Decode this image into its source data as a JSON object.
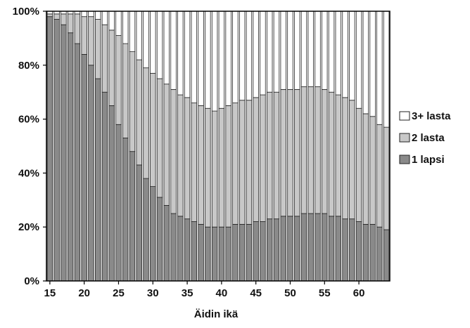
{
  "chart_data": {
    "type": "bar",
    "stacked": true,
    "normalized_percent": true,
    "xlabel": "Äidin ikä",
    "ylabel": "",
    "ylim": [
      0,
      100
    ],
    "ytick_labels": [
      "0%",
      "20%",
      "40%",
      "60%",
      "80%",
      "100%"
    ],
    "xtick_labels": [
      "15",
      "20",
      "25",
      "30",
      "35",
      "40",
      "45",
      "50",
      "55",
      "60"
    ],
    "categories": [
      15,
      16,
      17,
      18,
      19,
      20,
      21,
      22,
      23,
      24,
      25,
      26,
      27,
      28,
      29,
      30,
      31,
      32,
      33,
      34,
      35,
      36,
      37,
      38,
      39,
      40,
      41,
      42,
      43,
      44,
      45,
      46,
      47,
      48,
      49,
      50,
      51,
      52,
      53,
      54,
      55,
      56,
      57,
      58,
      59,
      60,
      61,
      62,
      63,
      64
    ],
    "legend_position": "right",
    "series": [
      {
        "name": "1 lapsi",
        "color": "#8a8a8a",
        "values": [
          98,
          97,
          95,
          92,
          88,
          84,
          80,
          75,
          70,
          65,
          58,
          53,
          48,
          43,
          38,
          35,
          31,
          28,
          25,
          24,
          23,
          22,
          21,
          20,
          20,
          20,
          20,
          21,
          21,
          21,
          22,
          22,
          23,
          23,
          24,
          24,
          24,
          25,
          25,
          25,
          25,
          24,
          24,
          23,
          23,
          22,
          21,
          21,
          20,
          19
        ]
      },
      {
        "name": "2 lasta",
        "color": "#c8c8c8",
        "values": [
          1,
          2,
          4,
          7,
          11,
          14,
          18,
          22,
          25,
          28,
          33,
          35,
          37,
          39,
          41,
          42,
          44,
          45,
          46,
          45,
          45,
          44,
          44,
          44,
          43,
          44,
          45,
          45,
          46,
          46,
          46,
          47,
          47,
          47,
          47,
          47,
          47,
          47,
          47,
          47,
          46,
          46,
          45,
          45,
          44,
          42,
          41,
          40,
          38,
          38
        ]
      },
      {
        "name": "3+ lasta",
        "color": "#ffffff",
        "values": [
          1,
          1,
          1,
          1,
          1,
          2,
          2,
          3,
          5,
          7,
          9,
          12,
          15,
          18,
          21,
          23,
          25,
          27,
          29,
          31,
          32,
          34,
          35,
          36,
          37,
          36,
          35,
          34,
          33,
          33,
          32,
          31,
          30,
          30,
          29,
          29,
          29,
          28,
          28,
          28,
          29,
          30,
          31,
          32,
          33,
          36,
          38,
          39,
          42,
          43
        ]
      }
    ]
  }
}
